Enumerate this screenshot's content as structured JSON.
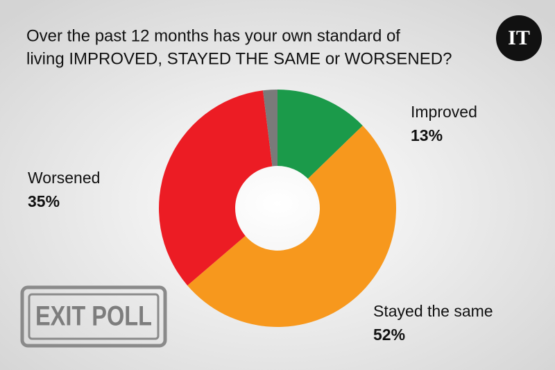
{
  "chart_data": {
    "type": "donut",
    "title": [
      "Over the past 12 months has your own standard of",
      "living IMPROVED, STAYED THE SAME or WORSENED?"
    ],
    "categories": [
      "Improved",
      "Stayed the same",
      "Worsened",
      null
    ],
    "values": [
      13,
      52,
      35,
      2
    ],
    "value_labels": [
      "13%",
      "52%",
      "35%",
      null
    ],
    "colors": [
      "#1b9a4a",
      "#f7981d",
      "#ec1c24",
      "#7a7a7a"
    ]
  },
  "logo": "IT",
  "stamp": "EXIT POLL"
}
